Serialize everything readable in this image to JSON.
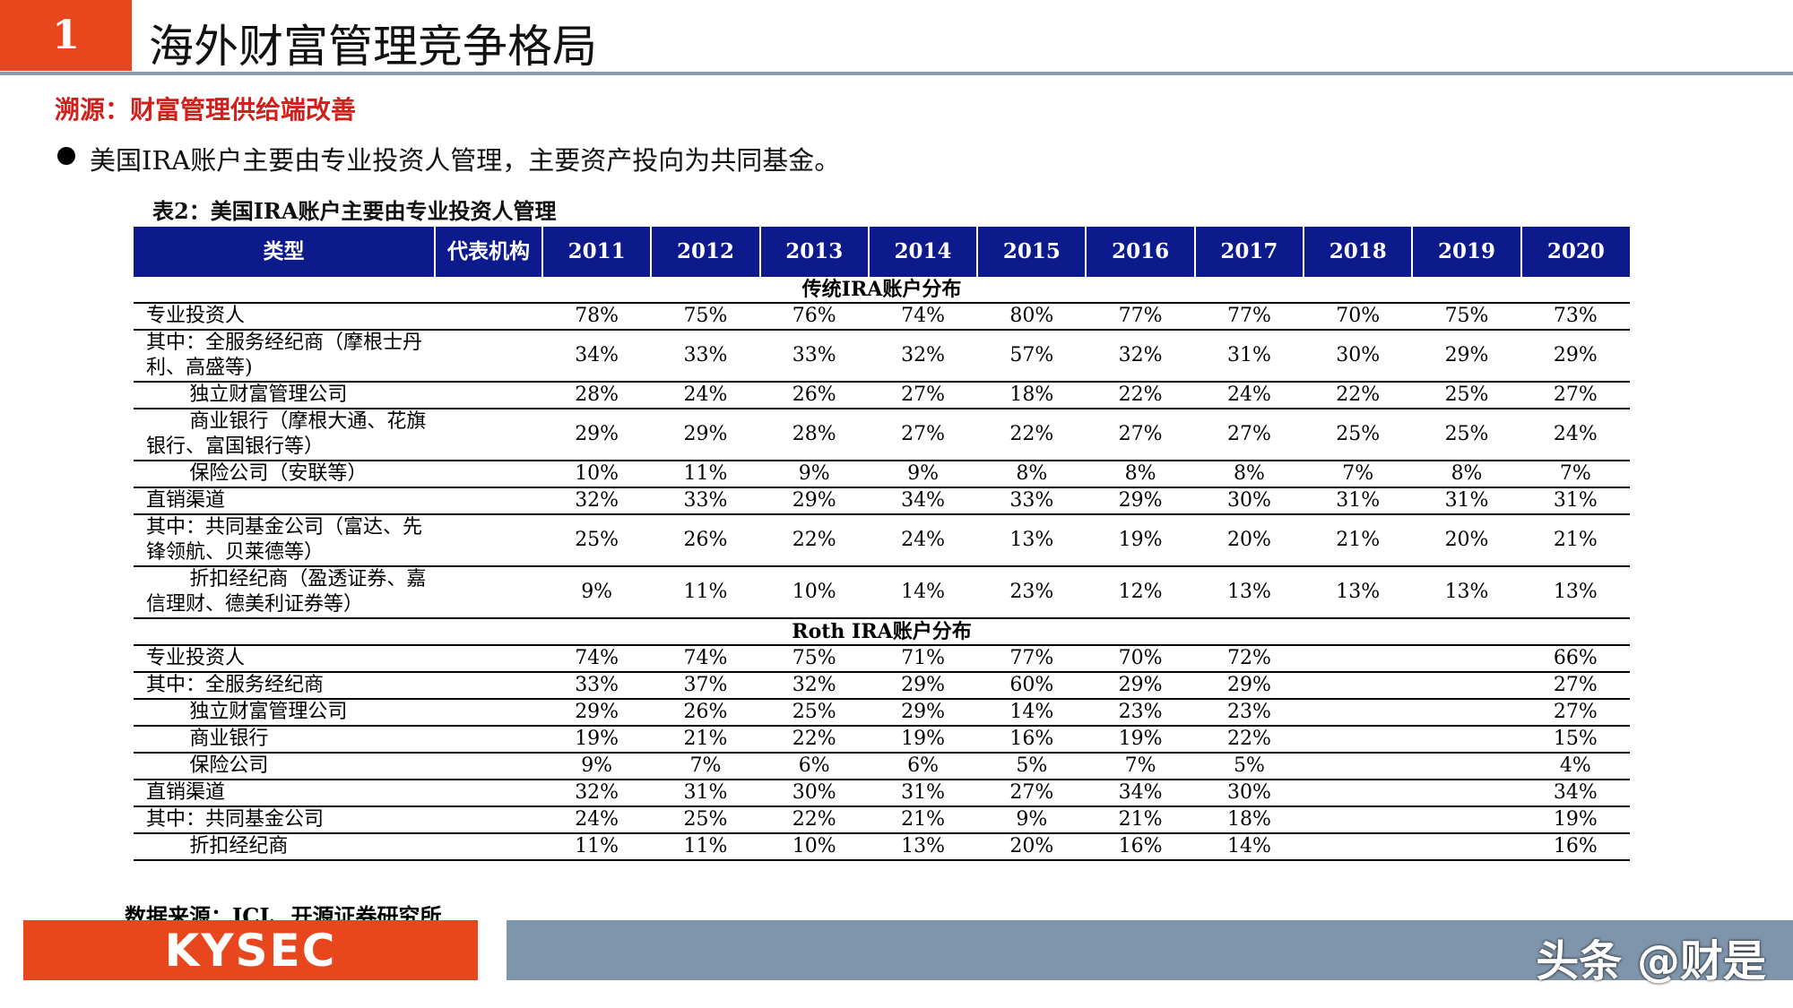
{
  "header": {
    "number": "1",
    "title": "海外财富管理竞争格局"
  },
  "subtitle": "溯源：财富管理供给端改善",
  "bullet": "美国IRA账户主要由专业投资人管理，主要资产投向为共同基金。",
  "table": {
    "caption": "表2：美国IRA账户主要由专业投资人管理",
    "columns": [
      "类型",
      "代表机构",
      "2011",
      "2012",
      "2013",
      "2014",
      "2015",
      "2016",
      "2017",
      "2018",
      "2019",
      "2020"
    ],
    "sections": [
      {
        "title": "传统IRA账户分布",
        "rows": [
          {
            "label": "专业投资人",
            "cells": [
              "78%",
              "75%",
              "76%",
              "74%",
              "80%",
              "77%",
              "77%",
              "70%",
              "75%",
              "73%"
            ]
          },
          {
            "label": "其中：全服务经纪商（摩根士丹利、高盛等)",
            "cells": [
              "34%",
              "33%",
              "33%",
              "32%",
              "57%",
              "32%",
              "31%",
              "30%",
              "29%",
              "29%"
            ]
          },
          {
            "label": "独立财富管理公司",
            "cells": [
              "28%",
              "24%",
              "26%",
              "27%",
              "18%",
              "22%",
              "24%",
              "22%",
              "25%",
              "27%"
            ]
          },
          {
            "label": "商业银行（摩根大通、花旗银行、富国银行等）",
            "cells": [
              "29%",
              "29%",
              "28%",
              "27%",
              "22%",
              "27%",
              "27%",
              "25%",
              "25%",
              "24%"
            ]
          },
          {
            "label": "保险公司（安联等）",
            "cells": [
              "10%",
              "11%",
              "9%",
              "9%",
              "8%",
              "8%",
              "8%",
              "7%",
              "8%",
              "7%"
            ]
          },
          {
            "label": "直销渠道",
            "cells": [
              "32%",
              "33%",
              "29%",
              "34%",
              "33%",
              "29%",
              "30%",
              "31%",
              "31%",
              "31%"
            ]
          },
          {
            "label": "其中：共同基金公司（富达、先锋领航、贝莱德等）",
            "cells": [
              "25%",
              "26%",
              "22%",
              "24%",
              "13%",
              "19%",
              "20%",
              "21%",
              "20%",
              "21%"
            ]
          },
          {
            "label": "折扣经纪商（盈透证券、嘉信理财、德美利证券等）",
            "cells": [
              "9%",
              "11%",
              "10%",
              "14%",
              "23%",
              "12%",
              "13%",
              "13%",
              "13%",
              "13%"
            ]
          }
        ]
      },
      {
        "title": "Roth IRA账户分布",
        "rows": [
          {
            "label": "专业投资人",
            "cells": [
              "74%",
              "74%",
              "75%",
              "71%",
              "77%",
              "70%",
              "72%",
              null,
              null,
              "66%"
            ]
          },
          {
            "label": "其中：全服务经纪商",
            "cells": [
              "33%",
              "37%",
              "32%",
              "29%",
              "60%",
              "29%",
              "29%",
              null,
              null,
              "27%"
            ]
          },
          {
            "label": "独立财富管理公司",
            "cells": [
              "29%",
              "26%",
              "25%",
              "29%",
              "14%",
              "23%",
              "23%",
              null,
              null,
              "27%"
            ]
          },
          {
            "label": "商业银行",
            "cells": [
              "19%",
              "21%",
              "22%",
              "19%",
              "16%",
              "19%",
              "22%",
              null,
              null,
              "15%"
            ]
          },
          {
            "label": "保险公司",
            "cells": [
              "9%",
              "7%",
              "6%",
              "6%",
              "5%",
              "7%",
              "5%",
              null,
              null,
              "4%"
            ]
          },
          {
            "label": "直销渠道",
            "cells": [
              "32%",
              "31%",
              "30%",
              "31%",
              "27%",
              "34%",
              "30%",
              null,
              null,
              "34%"
            ]
          },
          {
            "label": "其中：共同基金公司",
            "cells": [
              "24%",
              "25%",
              "22%",
              "21%",
              "9%",
              "21%",
              "18%",
              null,
              null,
              "19%"
            ]
          },
          {
            "label": "折扣经纪商",
            "cells": [
              "11%",
              "11%",
              "10%",
              "13%",
              "20%",
              "16%",
              "14%",
              null,
              null,
              "16%"
            ]
          }
        ]
      }
    ]
  },
  "source": "数据来源：ICI、开源证券研究所",
  "footer": {
    "logo": "KYSEC",
    "watermark": "头条 @财是"
  }
}
